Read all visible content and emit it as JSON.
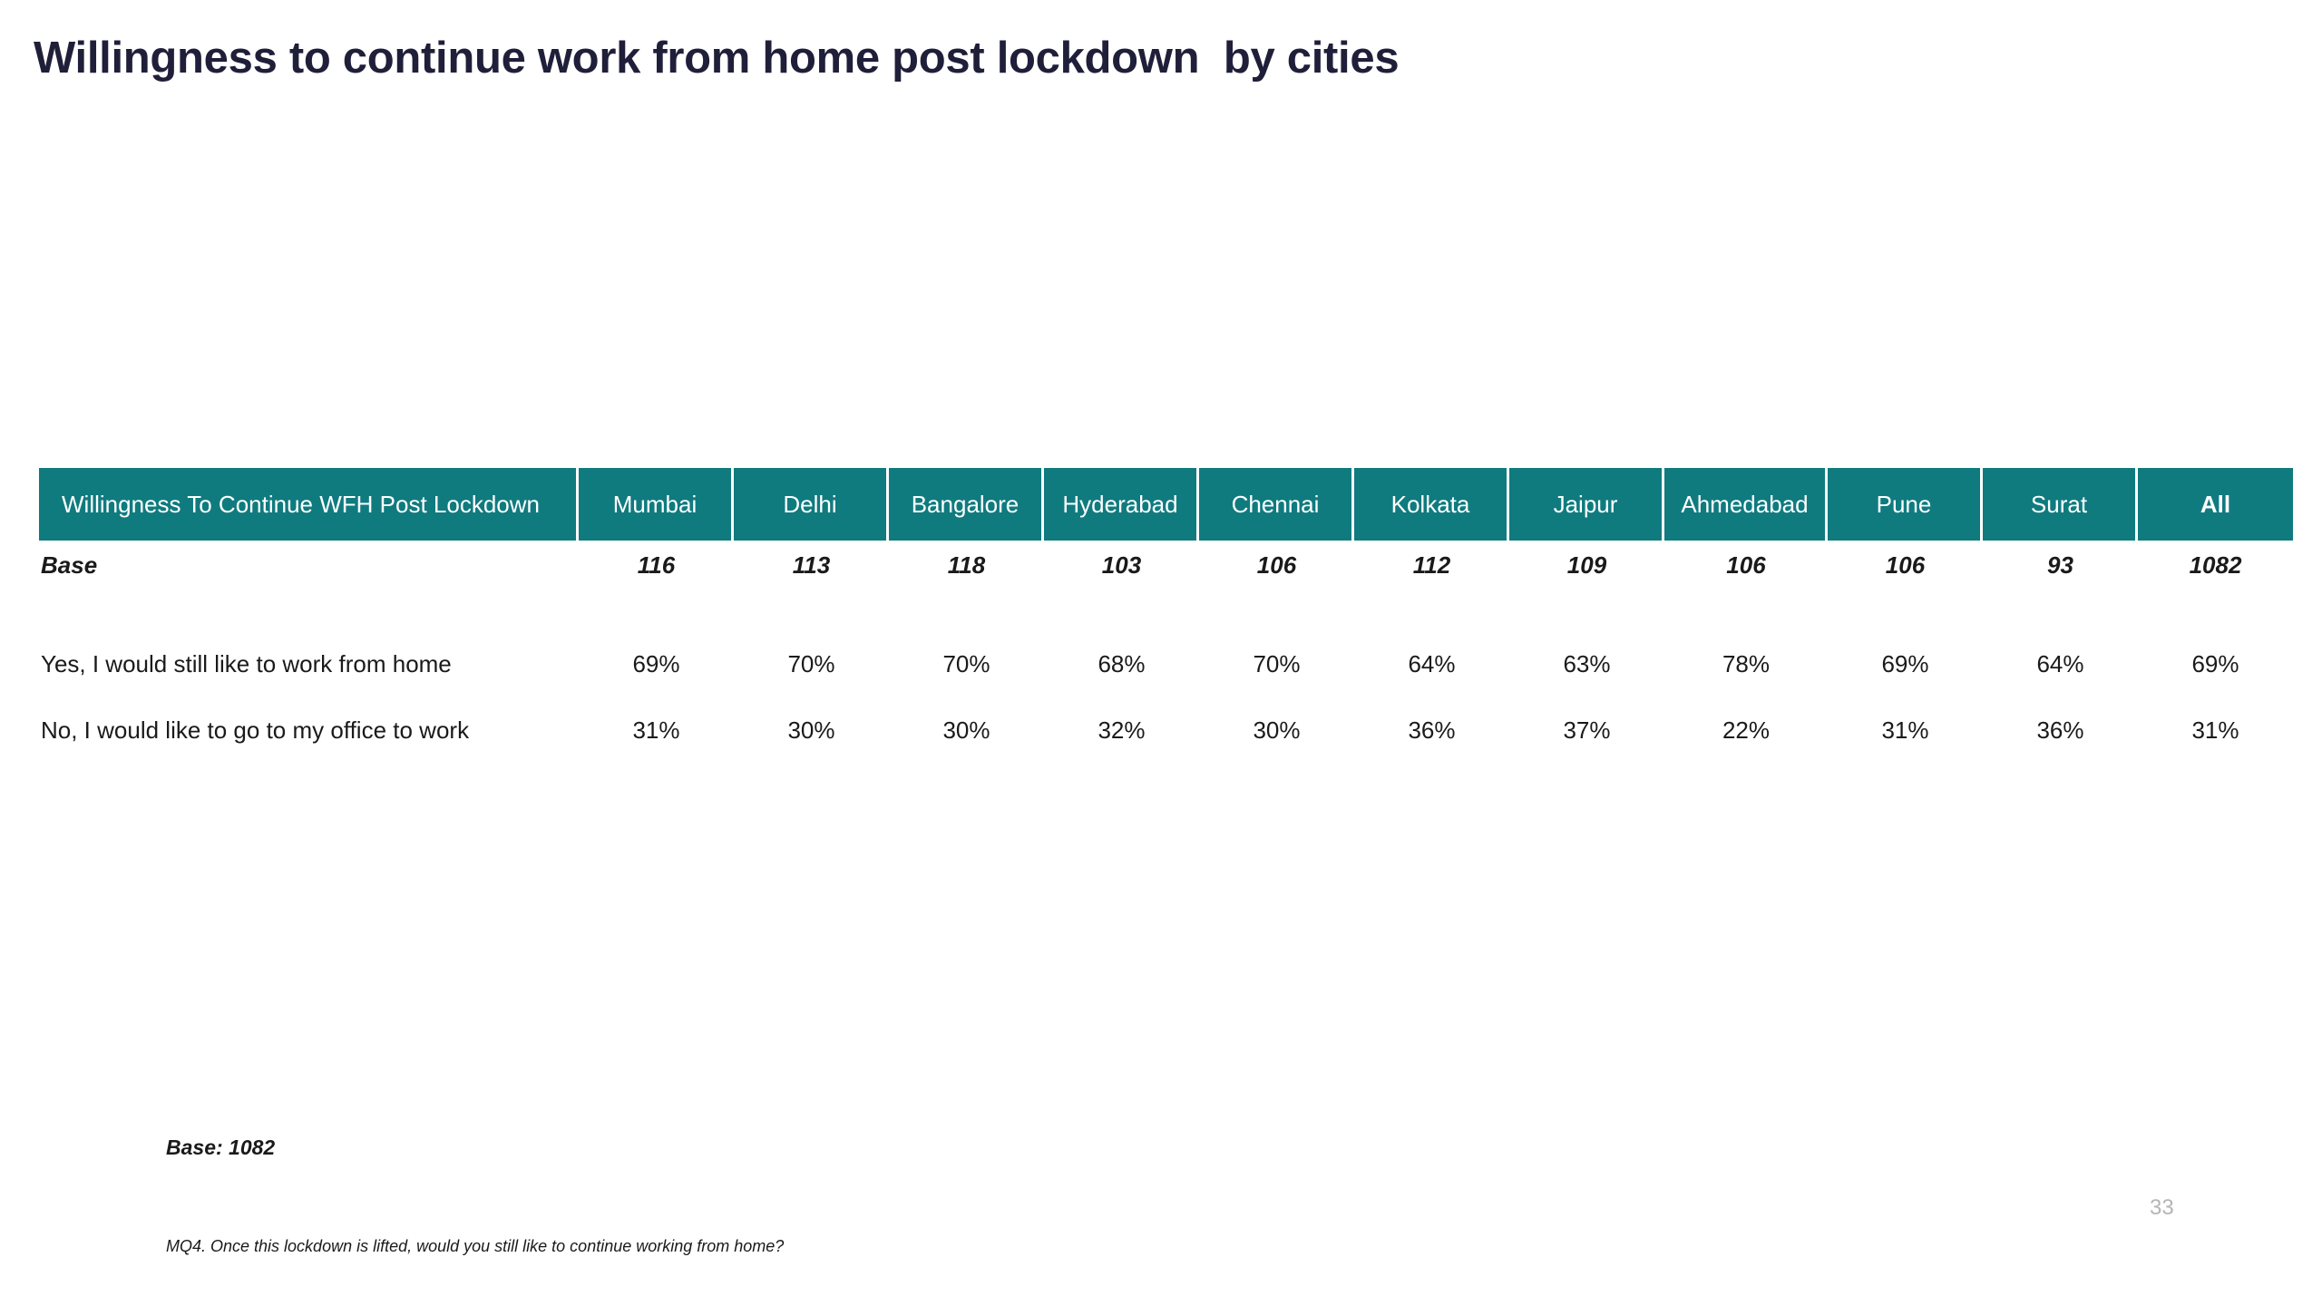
{
  "title": "Willingness to continue work from home post lockdown  by cities",
  "accent_color": "#0f7b7f",
  "table": {
    "header_label": "Willingness To Continue WFH Post Lockdown",
    "columns": [
      "Mumbai",
      "Delhi",
      "Bangalore",
      "Hyderabad",
      "Chennai",
      "Kolkata",
      "Jaipur",
      "Ahmedabad",
      "Pune",
      "Surat",
      "All"
    ],
    "base_row": {
      "label": "Base",
      "values": [
        "116",
        "113",
        "118",
        "103",
        "106",
        "112",
        "109",
        "106",
        "106",
        "93",
        "1082"
      ]
    },
    "rows": [
      {
        "label": "Yes, I would still like to work from home",
        "values": [
          "69%",
          "70%",
          "70%",
          "68%",
          "70%",
          "64%",
          "63%",
          "78%",
          "69%",
          "64%",
          "69%"
        ]
      },
      {
        "label": "No, I would like to go to my office to work",
        "values": [
          "31%",
          "30%",
          "30%",
          "32%",
          "30%",
          "36%",
          "37%",
          "22%",
          "31%",
          "36%",
          "31%"
        ]
      }
    ]
  },
  "footer": {
    "base_note": "Base: 1082",
    "page_number": "33",
    "question_note": "MQ4. Once this lockdown is lifted, would you still like to continue working from home?"
  }
}
